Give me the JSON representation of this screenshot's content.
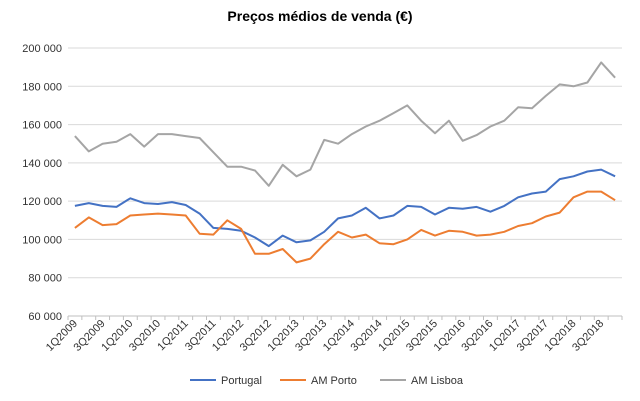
{
  "chart_data": {
    "type": "line",
    "title": "Preços médios de venda  (€)",
    "xlabel": "",
    "ylabel": "",
    "ylim": [
      60000,
      200000
    ],
    "y_ticks": [
      "60 000",
      "80 000",
      "100 000",
      "120 000",
      "140 000",
      "160 000",
      "180 000",
      "200 000"
    ],
    "y_tick_values": [
      60000,
      80000,
      100000,
      120000,
      140000,
      160000,
      180000,
      200000
    ],
    "grid": "horizontal",
    "legend_position": "bottom",
    "categories": [
      "1Q2009",
      "2Q2009",
      "3Q2009",
      "4Q2009",
      "1Q2010",
      "2Q2010",
      "3Q2010",
      "4Q2010",
      "1Q2011",
      "2Q2011",
      "3Q2011",
      "4Q2011",
      "1Q2012",
      "2Q2012",
      "3Q2012",
      "4Q2012",
      "1Q2013",
      "2Q2013",
      "3Q2013",
      "4Q2013",
      "1Q2014",
      "2Q2014",
      "3Q2014",
      "4Q2014",
      "1Q2015",
      "2Q2015",
      "3Q2015",
      "4Q2015",
      "1Q2016",
      "2Q2016",
      "3Q2016",
      "4Q2016",
      "1Q2017",
      "2Q2017",
      "3Q2017",
      "4Q2017",
      "1Q2018",
      "2Q2018",
      "3Q2018",
      "4Q2018"
    ],
    "x_tick_labels": [
      "1Q2009",
      "3Q2009",
      "1Q2010",
      "3Q2010",
      "1Q2011",
      "3Q2011",
      "1Q2012",
      "3Q2012",
      "1Q2013",
      "3Q2013",
      "1Q2014",
      "3Q2014",
      "1Q2015",
      "3Q2015",
      "1Q2016",
      "3Q2016",
      "1Q2017",
      "3Q2017",
      "1Q2018",
      "3Q2018"
    ],
    "series": [
      {
        "name": "Portugal",
        "color": "#4472C4",
        "values": [
          117500,
          119000,
          117500,
          117000,
          121500,
          119000,
          118500,
          119500,
          118000,
          113500,
          106000,
          105500,
          104500,
          101000,
          96500,
          102000,
          98500,
          99500,
          104000,
          111000,
          112500,
          116500,
          111000,
          112500,
          117500,
          117000,
          113000,
          116500,
          116000,
          117000,
          114500,
          117500,
          122000,
          124000,
          125000,
          131500,
          133000,
          135500,
          136500,
          133000
        ]
      },
      {
        "name": "AM Porto",
        "color": "#ED7D31",
        "values": [
          106000,
          111500,
          107500,
          108000,
          112500,
          113000,
          113500,
          113000,
          112500,
          103000,
          102500,
          110000,
          105500,
          92500,
          92500,
          95000,
          88000,
          90000,
          97500,
          104000,
          101000,
          102500,
          98000,
          97500,
          100000,
          105000,
          102000,
          104500,
          104000,
          102000,
          102500,
          104000,
          107000,
          108500,
          112000,
          114000,
          122000,
          125000,
          125000,
          120500
        ]
      },
      {
        "name": "AM Lisboa",
        "color": "#A5A5A5",
        "values": [
          154000,
          146000,
          150000,
          151000,
          155000,
          148500,
          155000,
          155000,
          154000,
          153000,
          145500,
          138000,
          138000,
          136000,
          128000,
          139000,
          133000,
          136500,
          152000,
          150000,
          155000,
          159000,
          162000,
          166000,
          170000,
          162000,
          155500,
          162000,
          151500,
          154500,
          159000,
          162000,
          169000,
          168500,
          175000,
          181000,
          180000,
          182000,
          192500,
          184500
        ]
      }
    ]
  }
}
